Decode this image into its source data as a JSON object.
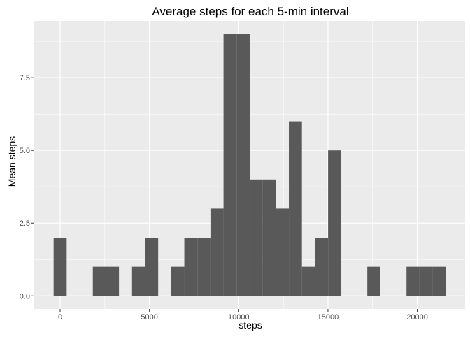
{
  "chart_data": {
    "type": "bar",
    "title": "Average steps for each 5-min interval",
    "xlabel": "steps",
    "ylabel": "Mean steps",
    "bin_width": 732,
    "bins": [
      {
        "x_start": -366,
        "x_end": 366,
        "count": 2
      },
      {
        "x_start": 1830,
        "x_end": 2562,
        "count": 1
      },
      {
        "x_start": 2562,
        "x_end": 3294,
        "count": 1
      },
      {
        "x_start": 4026,
        "x_end": 4758,
        "count": 1
      },
      {
        "x_start": 4758,
        "x_end": 5490,
        "count": 2
      },
      {
        "x_start": 6222,
        "x_end": 6954,
        "count": 1
      },
      {
        "x_start": 6954,
        "x_end": 7686,
        "count": 2
      },
      {
        "x_start": 7686,
        "x_end": 8418,
        "count": 2
      },
      {
        "x_start": 8418,
        "x_end": 9150,
        "count": 3
      },
      {
        "x_start": 9150,
        "x_end": 9882,
        "count": 9
      },
      {
        "x_start": 9882,
        "x_end": 10614,
        "count": 9
      },
      {
        "x_start": 10614,
        "x_end": 11346,
        "count": 4
      },
      {
        "x_start": 11346,
        "x_end": 12078,
        "count": 4
      },
      {
        "x_start": 12078,
        "x_end": 12810,
        "count": 3
      },
      {
        "x_start": 12810,
        "x_end": 13542,
        "count": 6
      },
      {
        "x_start": 13542,
        "x_end": 14274,
        "count": 1
      },
      {
        "x_start": 14274,
        "x_end": 15006,
        "count": 2
      },
      {
        "x_start": 15006,
        "x_end": 15738,
        "count": 5
      },
      {
        "x_start": 17202,
        "x_end": 17934,
        "count": 1
      },
      {
        "x_start": 19398,
        "x_end": 20130,
        "count": 1
      },
      {
        "x_start": 20130,
        "x_end": 20862,
        "count": 1
      },
      {
        "x_start": 20862,
        "x_end": 21594,
        "count": 1
      }
    ],
    "xlim": [
      -1450,
      22680
    ],
    "ylim": [
      -0.45,
      9.45
    ],
    "x_ticks": [
      0,
      5000,
      10000,
      15000,
      20000
    ],
    "x_tick_labels": [
      "0",
      "5000",
      "10000",
      "15000",
      "20000"
    ],
    "y_ticks": [
      0,
      2.5,
      5,
      7.5
    ],
    "y_tick_labels": [
      "0.0",
      "2.5",
      "5.0",
      "7.5"
    ],
    "grid": true,
    "legend": "none",
    "colors": {
      "panel_background": "#EBEBEB",
      "grid_major": "#FFFFFF",
      "bar_fill": "#595959",
      "text": "#000000",
      "tick_text": "#4D4D4D",
      "tick_mark": "#333333"
    }
  }
}
